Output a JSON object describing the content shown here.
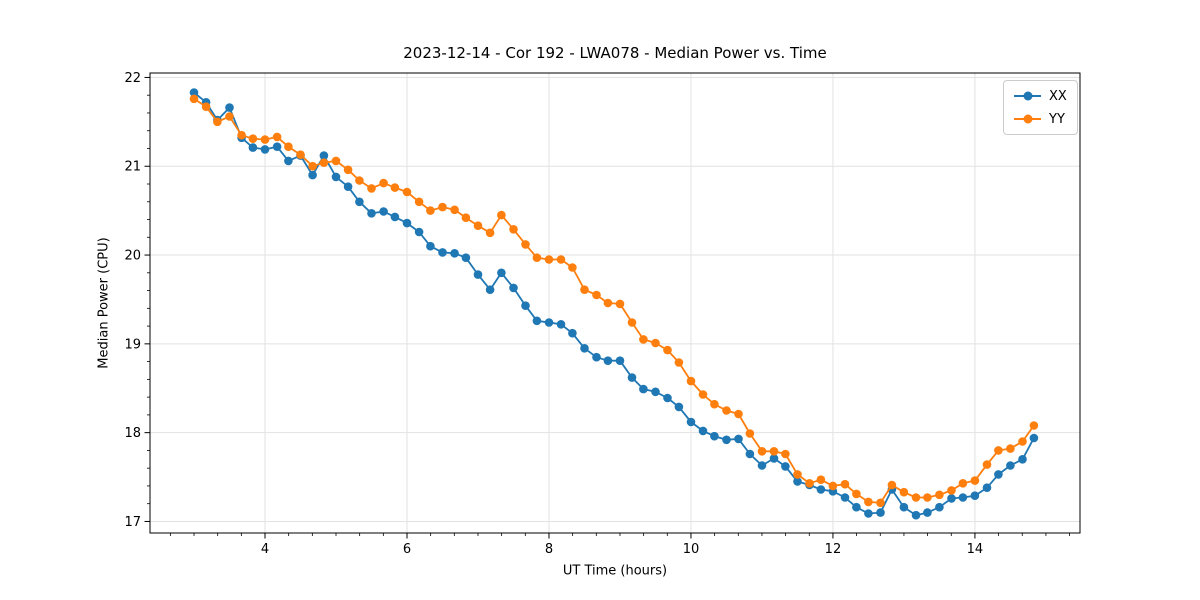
{
  "chart_data": {
    "type": "line",
    "title": "2023-12-14 - Cor 192 - LWA078 - Median Power vs. Time",
    "xlabel": "UT Time (hours)",
    "ylabel": "Median Power (CPU)",
    "xlim": [
      2.38,
      15.48
    ],
    "ylim": [
      16.87,
      22.05
    ],
    "x_ticks": [
      4,
      6,
      8,
      10,
      12,
      14
    ],
    "y_ticks": [
      17,
      18,
      19,
      20,
      21,
      22
    ],
    "x_minor_step": 0.3333,
    "y_minor_step": 0.2,
    "grid": true,
    "grid_color": "#e2e2e2",
    "legend_position": "upper right",
    "marker": "circle",
    "x": [
      3.0,
      3.17,
      3.33,
      3.5,
      3.67,
      3.83,
      4.0,
      4.17,
      4.33,
      4.5,
      4.67,
      4.83,
      5.0,
      5.17,
      5.33,
      5.5,
      5.67,
      5.83,
      6.0,
      6.17,
      6.33,
      6.5,
      6.67,
      6.83,
      7.0,
      7.17,
      7.33,
      7.5,
      7.67,
      7.83,
      8.0,
      8.17,
      8.33,
      8.5,
      8.67,
      8.83,
      9.0,
      9.17,
      9.33,
      9.5,
      9.67,
      9.83,
      10.0,
      10.17,
      10.33,
      10.5,
      10.67,
      10.83,
      11.0,
      11.17,
      11.33,
      11.5,
      11.67,
      11.83,
      12.0,
      12.17,
      12.33,
      12.5,
      12.67,
      12.83,
      13.0,
      13.17,
      13.33,
      13.5,
      13.67,
      13.83,
      14.0,
      14.17,
      14.33,
      14.5,
      14.67,
      14.83
    ],
    "series": [
      {
        "name": "XX",
        "color": "#1f77b4",
        "values": [
          21.83,
          21.72,
          21.52,
          21.66,
          21.32,
          21.21,
          21.19,
          21.22,
          21.06,
          21.12,
          20.9,
          21.12,
          20.88,
          20.77,
          20.6,
          20.47,
          20.49,
          20.43,
          20.36,
          20.26,
          20.1,
          20.03,
          20.02,
          19.97,
          19.78,
          19.61,
          19.8,
          19.63,
          19.43,
          19.26,
          19.24,
          19.22,
          19.12,
          18.95,
          18.85,
          18.81,
          18.81,
          18.62,
          18.49,
          18.46,
          18.39,
          18.29,
          18.12,
          18.02,
          17.96,
          17.92,
          17.93,
          17.76,
          17.63,
          17.71,
          17.62,
          17.45,
          17.41,
          17.36,
          17.34,
          17.27,
          17.16,
          17.09,
          17.1,
          17.36,
          17.16,
          17.07,
          17.1,
          17.16,
          17.26,
          17.27,
          17.29,
          17.38,
          17.53,
          17.63,
          17.7,
          17.94
        ]
      },
      {
        "name": "YY",
        "color": "#ff7f0e",
        "values": [
          21.76,
          21.67,
          21.5,
          21.56,
          21.35,
          21.31,
          21.3,
          21.33,
          21.22,
          21.13,
          21.0,
          21.04,
          21.06,
          20.96,
          20.84,
          20.75,
          20.81,
          20.76,
          20.71,
          20.6,
          20.5,
          20.54,
          20.51,
          20.42,
          20.33,
          20.25,
          20.45,
          20.29,
          20.12,
          19.97,
          19.95,
          19.95,
          19.86,
          19.61,
          19.55,
          19.46,
          19.45,
          19.24,
          19.05,
          19.01,
          18.93,
          18.79,
          18.58,
          18.43,
          18.32,
          18.25,
          18.21,
          17.99,
          17.79,
          17.79,
          17.76,
          17.53,
          17.43,
          17.47,
          17.4,
          17.42,
          17.31,
          17.22,
          17.21,
          17.41,
          17.33,
          17.27,
          17.27,
          17.3,
          17.35,
          17.43,
          17.46,
          17.64,
          17.8,
          17.82,
          17.9,
          18.08
        ]
      }
    ]
  }
}
